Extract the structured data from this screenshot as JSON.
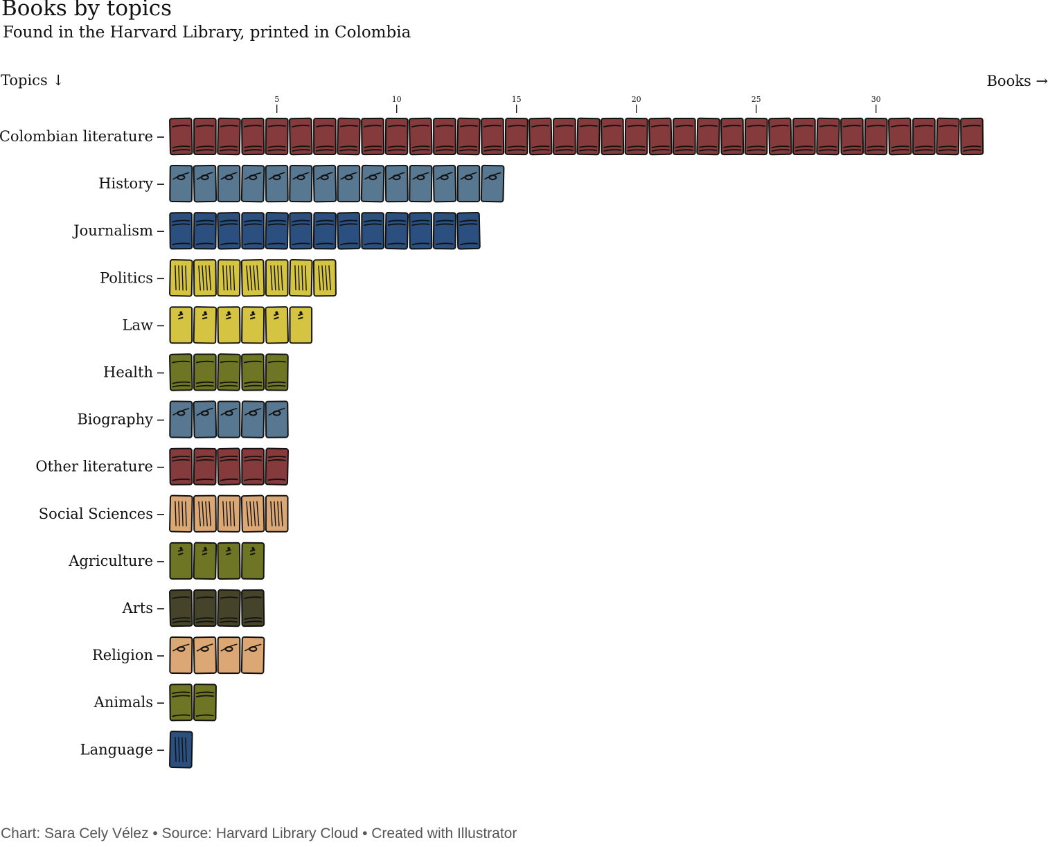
{
  "header": {
    "title": "Books by topics",
    "subtitle": "Found in the Harvard Library, printed in Colombia",
    "y_axis_label": "Topics ↓",
    "x_axis_label": "Books →"
  },
  "footer": {
    "credit": "Chart: Sara Cely Vélez • Source: Harvard Library Cloud • Created with Illustrator"
  },
  "chart_data": {
    "type": "bar",
    "title": "Books by topics",
    "subtitle": "Found in the Harvard Library, printed in Colombia",
    "xlabel": "Books →",
    "ylabel": "Topics ↓",
    "x_ticks": [
      5,
      10,
      15,
      20,
      25,
      30
    ],
    "xlim": [
      0,
      34
    ],
    "grid": false,
    "categories": [
      "Colombian literature",
      "History",
      "Journalism",
      "Politics",
      "Law",
      "Health",
      "Biography",
      "Other literature",
      "Social Sciences",
      "Agriculture",
      "Arts",
      "Religion",
      "Animals",
      "Language"
    ],
    "values": [
      34,
      14,
      13,
      7,
      6,
      5,
      5,
      5,
      5,
      4,
      4,
      4,
      2,
      1
    ],
    "colors": [
      "#853b3b",
      "#587892",
      "#2b507f",
      "#d4c441",
      "#d4c441",
      "#6e7625",
      "#587892",
      "#853b3b",
      "#dba875",
      "#6e7625",
      "#45442a",
      "#dba875",
      "#6e7625",
      "#2b507f"
    ]
  }
}
